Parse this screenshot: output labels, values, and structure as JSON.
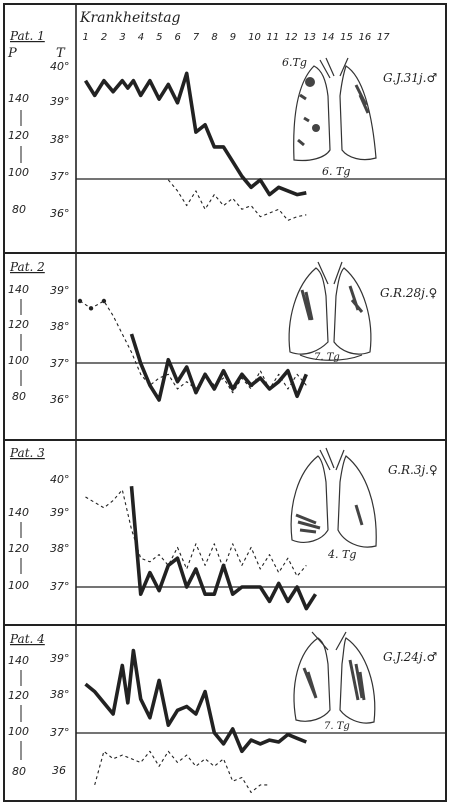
{
  "header": {
    "day_axis_label": "Krankheitstag",
    "days": [
      "1",
      "2",
      "3",
      "4",
      "5",
      "6",
      "7",
      "8",
      "9",
      "10",
      "11",
      "12",
      "13",
      "14",
      "15",
      "16",
      "17"
    ]
  },
  "axis_heads": {
    "pulse": "P",
    "temp": "T"
  },
  "pulse_ticks": [
    "140",
    "120",
    "100",
    "80"
  ],
  "colors": {
    "ink": "#222222",
    "paper": "#ffffff",
    "shade": "#555555"
  },
  "chart_data": [
    {
      "type": "line",
      "panel": "Pat. 1",
      "patient_label": "G.J.31j.♂",
      "lung_annotations": [
        "6.Tg",
        "6. Tg"
      ],
      "temp_ticks": [
        "40°",
        "39°",
        "38°",
        "37°",
        "36°"
      ],
      "x": [
        1,
        2,
        3,
        4,
        5,
        6,
        7,
        8,
        9,
        10,
        11,
        12,
        13,
        14,
        15,
        16,
        17
      ],
      "ylim_temp": [
        35.5,
        40.3
      ],
      "ylim_pulse": [
        70,
        170
      ],
      "series": [
        {
          "style": "solid-bold",
          "points": [
            [
              1,
              39.6
            ],
            [
              1.5,
              39.2
            ],
            [
              2,
              39.6
            ],
            [
              2.5,
              39.3
            ],
            [
              3,
              39.6
            ],
            [
              3.3,
              39.4
            ],
            [
              3.6,
              39.6
            ],
            [
              4,
              39.2
            ],
            [
              4.5,
              39.6
            ],
            [
              5,
              39.1
            ],
            [
              5.5,
              39.5
            ],
            [
              6,
              39.0
            ],
            [
              6.5,
              39.8
            ],
            [
              7,
              38.2
            ],
            [
              7.5,
              38.4
            ],
            [
              8,
              37.8
            ],
            [
              8.5,
              37.8
            ],
            [
              9,
              37.4
            ],
            [
              9.5,
              37.0
            ],
            [
              10,
              36.7
            ],
            [
              10.5,
              36.9
            ],
            [
              11,
              36.5
            ],
            [
              11.5,
              36.7
            ],
            [
              12,
              36.6
            ],
            [
              12.5,
              36.5
            ],
            [
              13,
              36.55
            ]
          ]
        },
        {
          "style": "dashed",
          "points": [
            [
              5.5,
              36.9
            ],
            [
              6,
              36.6
            ],
            [
              6.5,
              36.2
            ],
            [
              7,
              36.6
            ],
            [
              7.5,
              36.1
            ],
            [
              8,
              36.5
            ],
            [
              8.5,
              36.2
            ],
            [
              9,
              36.4
            ],
            [
              9.5,
              36.1
            ],
            [
              10,
              36.2
            ],
            [
              10.5,
              35.9
            ],
            [
              11,
              36.0
            ],
            [
              11.5,
              36.1
            ],
            [
              12,
              35.8
            ],
            [
              12.5,
              35.9
            ],
            [
              13,
              35.95
            ]
          ]
        }
      ]
    },
    {
      "type": "line",
      "panel": "Pat. 2",
      "patient_label": "G.R.28j.♀",
      "lung_annotations": [
        "7. Tg"
      ],
      "temp_ticks": [
        "39°",
        "38°",
        "37°",
        "36°"
      ],
      "x": [
        1,
        2,
        3,
        4,
        5,
        6,
        7,
        8,
        9,
        10,
        11,
        12,
        13,
        14,
        15,
        16,
        17
      ],
      "ylim_temp": [
        35.5,
        39.4
      ],
      "ylim_pulse": [
        70,
        150
      ],
      "series": [
        {
          "style": "dashed",
          "points": [
            [
              0.7,
              38.7
            ],
            [
              1.3,
              38.5
            ],
            [
              2,
              38.7
            ],
            [
              2.5,
              38.3
            ],
            [
              3,
              37.8
            ],
            [
              3.5,
              37.3
            ],
            [
              4,
              36.7
            ],
            [
              4.5,
              36.4
            ],
            [
              5,
              36.6
            ],
            [
              5.5,
              36.7
            ],
            [
              6,
              36.3
            ],
            [
              6.5,
              36.5
            ],
            [
              7,
              36.3
            ],
            [
              7.5,
              36.7
            ],
            [
              8,
              36.4
            ],
            [
              8.5,
              36.6
            ],
            [
              9,
              36.2
            ],
            [
              9.5,
              36.6
            ],
            [
              10,
              36.3
            ],
            [
              10.5,
              36.8
            ],
            [
              11,
              36.3
            ],
            [
              11.5,
              36.7
            ],
            [
              12,
              36.3
            ],
            [
              12.5,
              36.7
            ],
            [
              13,
              36.4
            ]
          ]
        },
        {
          "style": "solid-bold",
          "points": [
            [
              3.5,
              37.8
            ],
            [
              4,
              37.0
            ],
            [
              4.5,
              36.4
            ],
            [
              5,
              36.0
            ],
            [
              5.5,
              37.1
            ],
            [
              6,
              36.5
            ],
            [
              6.5,
              36.9
            ],
            [
              7,
              36.2
            ],
            [
              7.5,
              36.7
            ],
            [
              8,
              36.3
            ],
            [
              8.5,
              36.8
            ],
            [
              9,
              36.3
            ],
            [
              9.5,
              36.7
            ],
            [
              10,
              36.4
            ],
            [
              10.5,
              36.6
            ],
            [
              11,
              36.3
            ],
            [
              11.5,
              36.5
            ],
            [
              12,
              36.8
            ],
            [
              12.5,
              36.1
            ],
            [
              13,
              36.7
            ]
          ]
        }
      ]
    },
    {
      "type": "line",
      "panel": "Pat. 3",
      "patient_label": "G.R.3j.♀",
      "lung_annotations": [
        "4. Tg"
      ],
      "temp_ticks": [
        "40°",
        "39°",
        "38°",
        "37°"
      ],
      "x": [
        1,
        2,
        3,
        4,
        5,
        6,
        7,
        8,
        9,
        10,
        11,
        12,
        13,
        14,
        15,
        16,
        17
      ],
      "ylim_temp": [
        36.5,
        40.3
      ],
      "ylim_pulse": [
        90,
        160
      ],
      "series": [
        {
          "style": "dashed",
          "points": [
            [
              1,
              39.5
            ],
            [
              2,
              39.2
            ],
            [
              2.5,
              39.4
            ],
            [
              3,
              39.7
            ],
            [
              3.5,
              38.6
            ],
            [
              4,
              37.8
            ],
            [
              4.5,
              37.7
            ],
            [
              5,
              37.9
            ],
            [
              5.5,
              37.6
            ],
            [
              6,
              38.1
            ],
            [
              6.5,
              37.5
            ],
            [
              7,
              38.2
            ],
            [
              7.5,
              37.6
            ],
            [
              8,
              38.2
            ],
            [
              8.5,
              37.5
            ],
            [
              9,
              38.2
            ],
            [
              9.5,
              37.6
            ],
            [
              10,
              38.1
            ],
            [
              10.5,
              37.5
            ],
            [
              11,
              37.9
            ],
            [
              11.5,
              37.4
            ],
            [
              12,
              37.8
            ],
            [
              12.5,
              37.3
            ],
            [
              13,
              37.6
            ]
          ]
        },
        {
          "style": "solid-bold",
          "points": [
            [
              3.5,
              39.8
            ],
            [
              4,
              36.8
            ],
            [
              4.5,
              37.4
            ],
            [
              5,
              36.9
            ],
            [
              5.5,
              37.6
            ],
            [
              6,
              37.8
            ],
            [
              6.5,
              37.0
            ],
            [
              7,
              37.5
            ],
            [
              7.5,
              36.8
            ],
            [
              8,
              36.8
            ],
            [
              8.5,
              37.6
            ],
            [
              9,
              36.8
            ],
            [
              9.5,
              37.0
            ],
            [
              10,
              37.0
            ],
            [
              10.5,
              37.0
            ],
            [
              11,
              36.6
            ],
            [
              11.5,
              37.1
            ],
            [
              12,
              36.6
            ],
            [
              12.5,
              37.0
            ],
            [
              13,
              36.4
            ],
            [
              13.5,
              36.8
            ]
          ]
        }
      ]
    },
    {
      "type": "line",
      "panel": "Pat. 4",
      "patient_label": "G.J.24j.♂",
      "lung_annotations": [
        "7. Tg"
      ],
      "temp_ticks": [
        "39°",
        "38°",
        "37°",
        "36"
      ],
      "x": [
        1,
        2,
        3,
        4,
        5,
        6,
        7,
        8,
        9,
        10,
        11,
        12,
        13,
        14,
        15,
        16,
        17
      ],
      "ylim_temp": [
        35.5,
        39.4
      ],
      "ylim_pulse": [
        70,
        150
      ],
      "series": [
        {
          "style": "solid-bold",
          "points": [
            [
              1,
              38.3
            ],
            [
              1.5,
              38.1
            ],
            [
              2,
              37.8
            ],
            [
              2.5,
              37.5
            ],
            [
              3,
              38.8
            ],
            [
              3.3,
              37.8
            ],
            [
              3.6,
              39.2
            ],
            [
              4,
              37.9
            ],
            [
              4.5,
              37.4
            ],
            [
              5,
              38.4
            ],
            [
              5.5,
              37.2
            ],
            [
              6,
              37.6
            ],
            [
              6.5,
              37.7
            ],
            [
              7,
              37.5
            ],
            [
              7.5,
              38.1
            ],
            [
              8,
              37.0
            ],
            [
              8.5,
              36.7
            ],
            [
              9,
              37.1
            ],
            [
              9.5,
              36.5
            ],
            [
              10,
              36.8
            ],
            [
              10.5,
              36.7
            ],
            [
              11,
              36.8
            ],
            [
              11.5,
              36.75
            ],
            [
              12,
              36.95
            ],
            [
              12.5,
              36.85
            ],
            [
              13,
              36.75
            ]
          ]
        },
        {
          "style": "dashed",
          "points": [
            [
              1.5,
              35.6
            ],
            [
              2,
              36.5
            ],
            [
              2.5,
              36.3
            ],
            [
              3,
              36.4
            ],
            [
              3.5,
              36.3
            ],
            [
              4,
              36.2
            ],
            [
              4.5,
              36.5
            ],
            [
              5,
              36.1
            ],
            [
              5.5,
              36.5
            ],
            [
              6,
              36.2
            ],
            [
              6.5,
              36.4
            ],
            [
              7,
              36.1
            ],
            [
              7.5,
              36.3
            ],
            [
              8,
              36.1
            ],
            [
              8.5,
              36.3
            ],
            [
              9,
              35.7
            ],
            [
              9.5,
              35.8
            ],
            [
              10,
              35.4
            ],
            [
              10.5,
              35.6
            ],
            [
              11,
              35.6
            ]
          ]
        }
      ]
    }
  ]
}
